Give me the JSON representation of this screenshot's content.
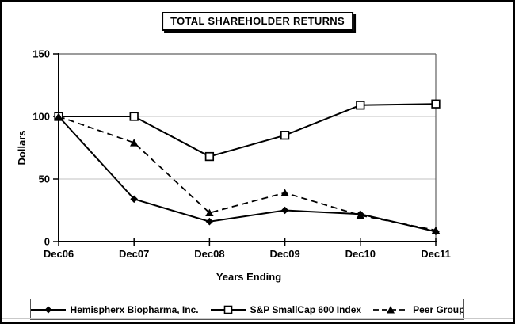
{
  "window": {
    "background": "#ffffff",
    "border_color": "#000000"
  },
  "header": {
    "title": "TOTAL SHAREHOLDER RETURNS"
  },
  "chart_data": {
    "type": "line",
    "title": "TOTAL SHAREHOLDER RETURNS",
    "categories": [
      "Dec06",
      "Dec07",
      "Dec08",
      "Dec09",
      "Dec10",
      "Dec11"
    ],
    "series": [
      {
        "name": "Hemispherx Biopharma, Inc.",
        "marker": "diamond-filled",
        "line_style": "solid",
        "color": "#000000",
        "values": [
          100,
          34,
          16,
          25,
          22,
          8
        ]
      },
      {
        "name": "S&P SmallCap 600 Index",
        "marker": "square-open",
        "line_style": "solid",
        "color": "#000000",
        "values": [
          100,
          100,
          68,
          85,
          109,
          110
        ]
      },
      {
        "name": "Peer Group",
        "marker": "triangle-filled",
        "line_style": "dashed",
        "color": "#000000",
        "values": [
          100,
          79,
          23,
          39,
          21,
          9
        ]
      }
    ],
    "xlabel": "Years Ending",
    "ylabel": "Dollars",
    "ylim": [
      0,
      150
    ],
    "yticks": [
      0,
      50,
      100,
      150
    ],
    "grid": "horizontal",
    "gridline_color": "#c0c0c0",
    "frame_color": "#606060",
    "legend_position": "bottom"
  }
}
